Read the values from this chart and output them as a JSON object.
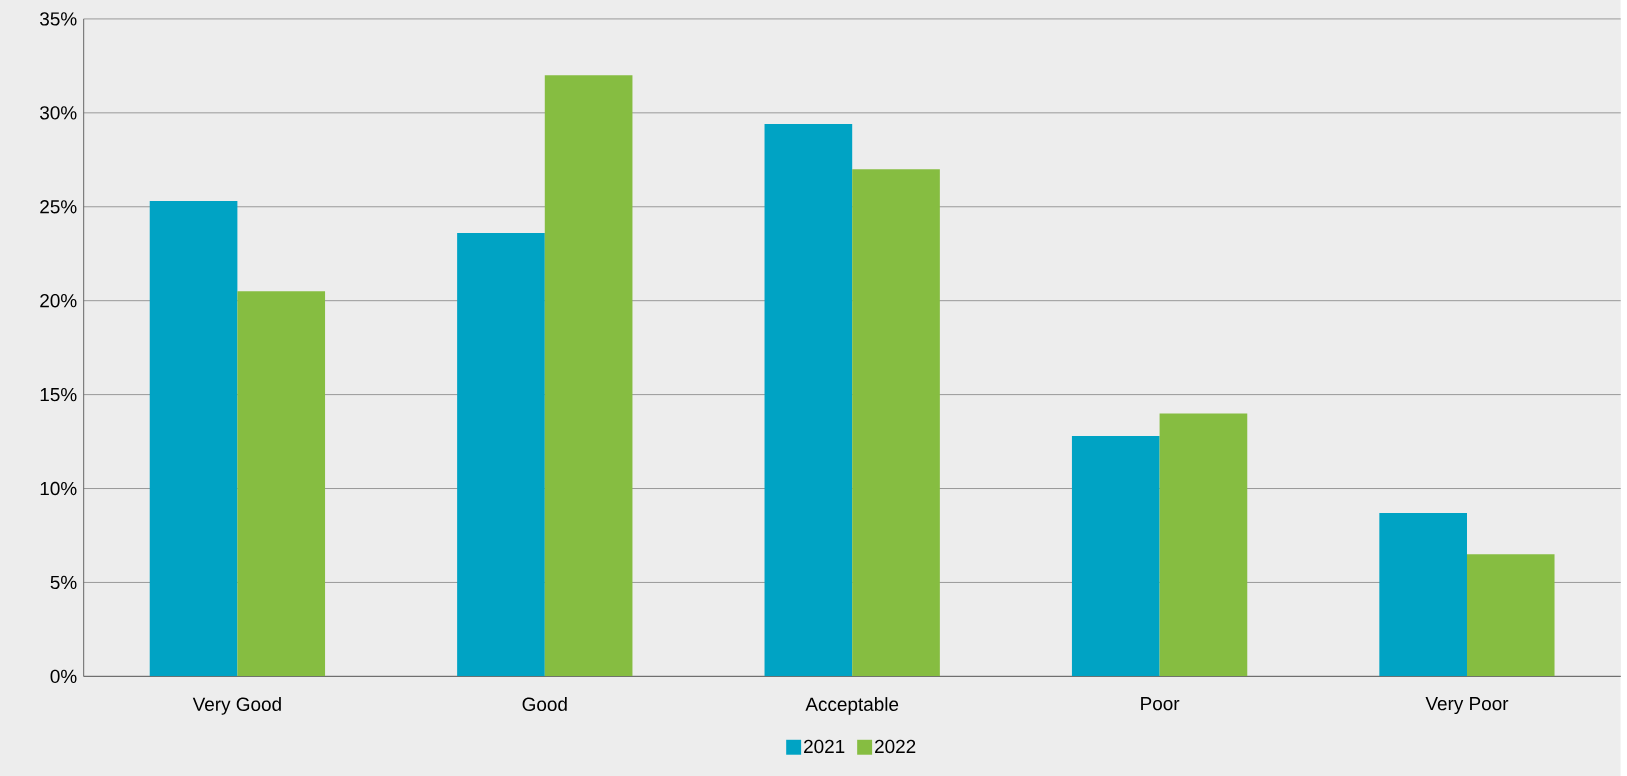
{
  "chart_data": {
    "type": "bar",
    "categories": [
      "Very Good",
      "Good",
      "Acceptable",
      "Poor",
      "Very Poor"
    ],
    "series": [
      {
        "name": "2021",
        "color": "#00a3c4",
        "values": [
          25.3,
          23.6,
          29.4,
          12.8,
          8.7
        ]
      },
      {
        "name": "2022",
        "color": "#86bd41",
        "values": [
          20.5,
          32.0,
          27.0,
          14.0,
          6.5
        ]
      }
    ],
    "ylim": [
      0,
      35
    ],
    "yticks": [
      {
        "value": 0,
        "label": "0%"
      },
      {
        "value": 5,
        "label": "5%"
      },
      {
        "value": 10,
        "label": "10%"
      },
      {
        "value": 15,
        "label": "15%"
      },
      {
        "value": 20,
        "label": "20%"
      },
      {
        "value": 25,
        "label": "25%"
      },
      {
        "value": 30,
        "label": "30%"
      },
      {
        "value": 35,
        "label": "35%"
      }
    ],
    "grid": "y",
    "legend": "bottom"
  }
}
